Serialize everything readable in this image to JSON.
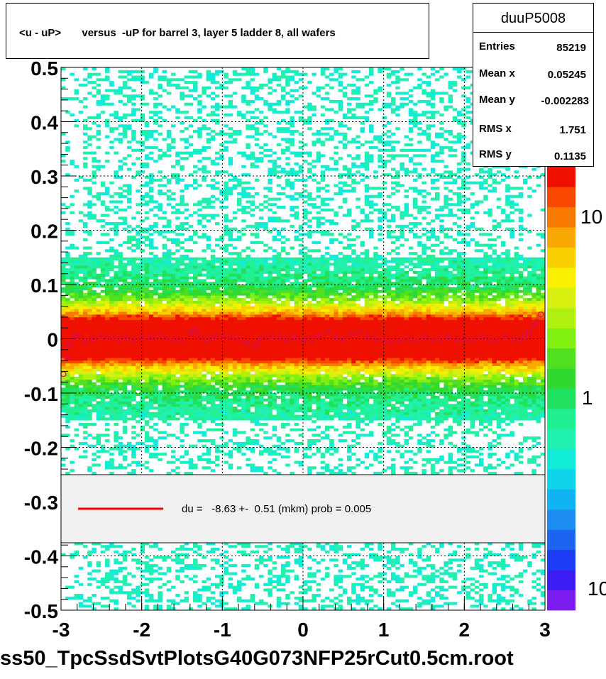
{
  "title": "<u - uP>       versus  -uP for barrel 3, layer 5 ladder 8, all wafers",
  "stats": {
    "name": "duuP5008",
    "rows": [
      {
        "label": "Entries",
        "value": "85219"
      },
      {
        "label": "Mean x",
        "value": "0.05245"
      },
      {
        "label": "Mean y",
        "value": "-0.002283"
      },
      {
        "label": "RMS x",
        "value": "1.751"
      },
      {
        "label": "RMS y",
        "value": "0.1135"
      }
    ]
  },
  "fit_legend": {
    "text": "du =   -8.63 +-  0.51 (mkm) prob = 0.005",
    "line_color": "#ff0000"
  },
  "footer": "ss50_TpcSsdSvtPlotsG40G073NFP25rCut0.5cm.root",
  "chart_data": {
    "type": "heatmap",
    "title": "<u - uP>       versus  -uP for barrel 3, layer 5 ladder 8, all wafers",
    "xlabel": "",
    "ylabel": "",
    "xlim": [
      -3,
      3
    ],
    "ylim": [
      -0.5,
      0.5
    ],
    "x_ticks": [
      "-3",
      "-2",
      "-1",
      "0",
      "1",
      "2",
      "3"
    ],
    "y_ticks": [
      "-0.5",
      "-0.4",
      "-0.3",
      "-0.2",
      "-0.1",
      "0",
      "0.1",
      "0.2",
      "0.3",
      "0.4",
      "0.5"
    ],
    "z_scale": "log",
    "colorbar_labels": [
      "10",
      "1",
      "10"
    ],
    "grid": true,
    "band_center": 0.0,
    "band_width_rms": 0.1135,
    "profile_points": [
      {
        "x": -2.97,
        "y": -0.065
      },
      {
        "x": -2.93,
        "y": -0.035
      },
      {
        "x": -2.9,
        "y": -0.01
      },
      {
        "x": -2.85,
        "y": 0.003
      },
      {
        "x": -2.8,
        "y": 0.005
      },
      {
        "x": -2.7,
        "y": -0.005
      },
      {
        "x": -2.6,
        "y": 0.0
      },
      {
        "x": -2.5,
        "y": 0.004
      },
      {
        "x": -2.4,
        "y": 0.002
      },
      {
        "x": -2.3,
        "y": 0.0
      },
      {
        "x": -2.2,
        "y": 0.003
      },
      {
        "x": -2.1,
        "y": -0.003
      },
      {
        "x": -2.0,
        "y": 0.002
      },
      {
        "x": -1.9,
        "y": 0.003
      },
      {
        "x": -1.8,
        "y": 0.006
      },
      {
        "x": -1.7,
        "y": 0.002
      },
      {
        "x": -1.6,
        "y": 0.0
      },
      {
        "x": -1.5,
        "y": -0.002
      },
      {
        "x": -1.4,
        "y": 0.01
      },
      {
        "x": -1.35,
        "y": 0.016
      },
      {
        "x": -1.3,
        "y": 0.004
      },
      {
        "x": -1.2,
        "y": 0.0
      },
      {
        "x": -1.1,
        "y": 0.003
      },
      {
        "x": -1.0,
        "y": 0.006
      },
      {
        "x": -0.9,
        "y": 0.002
      },
      {
        "x": -0.8,
        "y": 0.0
      },
      {
        "x": -0.7,
        "y": -0.008
      },
      {
        "x": -0.6,
        "y": -0.014
      },
      {
        "x": -0.55,
        "y": -0.006
      },
      {
        "x": -0.5,
        "y": 0.002
      },
      {
        "x": -0.4,
        "y": 0.004
      },
      {
        "x": -0.3,
        "y": 0.002
      },
      {
        "x": -0.2,
        "y": 0.0
      },
      {
        "x": -0.1,
        "y": 0.003
      },
      {
        "x": 0.0,
        "y": -0.002
      },
      {
        "x": 0.1,
        "y": 0.0
      },
      {
        "x": 0.2,
        "y": 0.005
      },
      {
        "x": 0.3,
        "y": 0.012
      },
      {
        "x": 0.4,
        "y": 0.003
      },
      {
        "x": 0.5,
        "y": 0.0
      },
      {
        "x": 0.6,
        "y": 0.007
      },
      {
        "x": 0.7,
        "y": 0.012
      },
      {
        "x": 0.8,
        "y": 0.003
      },
      {
        "x": 0.9,
        "y": 0.0
      },
      {
        "x": 1.0,
        "y": -0.003
      },
      {
        "x": 1.1,
        "y": -0.006
      },
      {
        "x": 1.2,
        "y": -0.002
      },
      {
        "x": 1.3,
        "y": 0.0
      },
      {
        "x": 1.4,
        "y": -0.004
      },
      {
        "x": 1.5,
        "y": 0.002
      },
      {
        "x": 1.6,
        "y": -0.002
      },
      {
        "x": 1.7,
        "y": 0.0
      },
      {
        "x": 1.8,
        "y": 0.003
      },
      {
        "x": 1.9,
        "y": -0.002
      },
      {
        "x": 2.0,
        "y": 0.0
      },
      {
        "x": 2.1,
        "y": -0.003
      },
      {
        "x": 2.2,
        "y": 0.002
      },
      {
        "x": 2.3,
        "y": 0.0
      },
      {
        "x": 2.4,
        "y": -0.004
      },
      {
        "x": 2.5,
        "y": 0.004
      },
      {
        "x": 2.6,
        "y": -0.003
      },
      {
        "x": 2.7,
        "y": 0.0
      },
      {
        "x": 2.75,
        "y": 0.004
      },
      {
        "x": 2.8,
        "y": 0.012
      },
      {
        "x": 2.85,
        "y": 0.025
      },
      {
        "x": 2.9,
        "y": 0.032
      },
      {
        "x": 2.95,
        "y": 0.045
      }
    ]
  }
}
